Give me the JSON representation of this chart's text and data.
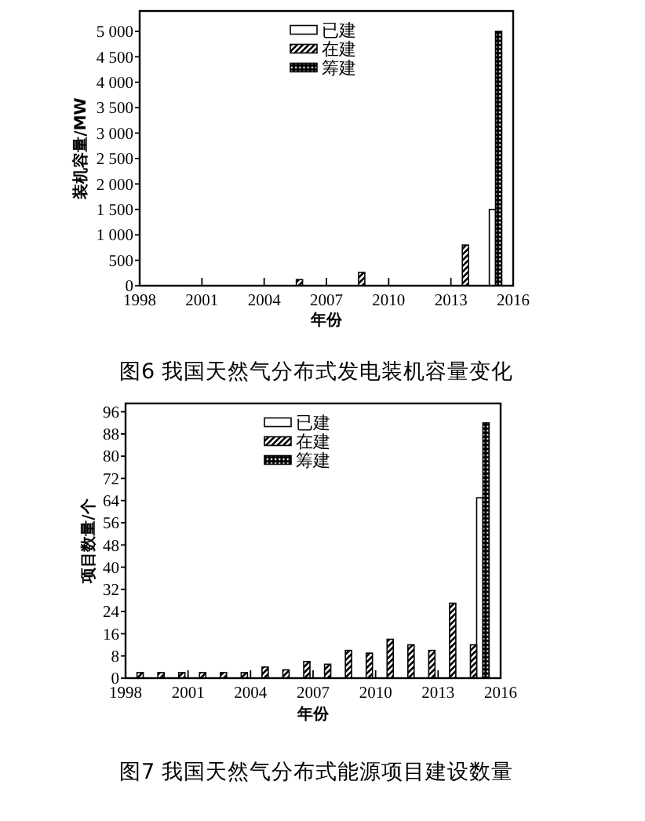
{
  "chart_data": [
    {
      "type": "bar",
      "title": "图6 我国天然气分布式发电装机容量变化",
      "xlabel": "年份",
      "ylabel": "装机容量/MW",
      "xlim": [
        1998,
        2016
      ],
      "xticks": [
        1998,
        2001,
        2004,
        2007,
        2010,
        2013,
        2016
      ],
      "ylim": [
        0,
        5400
      ],
      "yticks": [
        0,
        500,
        {
          "value": 1000,
          "label": "1 000"
        },
        {
          "value": 1500,
          "label": "1 500"
        },
        {
          "value": 2000,
          "label": "2 000"
        },
        {
          "value": 2500,
          "label": "2 500"
        },
        {
          "value": 3000,
          "label": "3 000"
        },
        {
          "value": 3500,
          "label": "3 500"
        },
        {
          "value": 4000,
          "label": "4 000"
        },
        {
          "value": 4500,
          "label": "4 500"
        },
        {
          "value": 5000,
          "label": "5 000"
        }
      ],
      "legend": "top",
      "series": [
        {
          "name": "已建",
          "color": "#ffffff",
          "x": [
            2015.0
          ],
          "values": [
            1500
          ]
        },
        {
          "name": "在建",
          "color": "#000000",
          "x": [
            2005.7,
            2008.7,
            2013.7
          ],
          "values": [
            120,
            260,
            800
          ]
        },
        {
          "name": "筹建",
          "color": "#000000",
          "x": [
            2015.3
          ],
          "values": [
            5000
          ]
        }
      ]
    },
    {
      "type": "bar",
      "title": "图7 我国天然气分布式能源项目建设数量",
      "xlabel": "年份",
      "ylabel": "项目数量/个",
      "xlim": [
        1998,
        2016
      ],
      "xticks": [
        1998,
        2001,
        2004,
        2007,
        2010,
        2013,
        2016
      ],
      "ylim": [
        0,
        99
      ],
      "yticks": [
        0,
        8,
        16,
        24,
        32,
        40,
        48,
        56,
        64,
        72,
        80,
        88,
        96
      ],
      "legend": "top",
      "series": [
        {
          "name": "已建",
          "color": "#ffffff",
          "x": [
            2015.0
          ],
          "values": [
            65
          ]
        },
        {
          "name": "在建",
          "color": "#000000",
          "x": [
            1998.7,
            1999.7,
            2000.7,
            2001.7,
            2002.7,
            2003.7,
            2004.7,
            2005.7,
            2006.7,
            2007.7,
            2008.7,
            2009.7,
            2010.7,
            2011.7,
            2012.7,
            2013.7,
            2014.7
          ],
          "values": [
            2,
            2,
            2,
            2,
            2,
            2,
            4,
            3,
            6,
            5,
            10,
            9,
            14,
            12,
            10,
            27,
            12
          ]
        },
        {
          "name": "筹建",
          "color": "#000000",
          "x": [
            2015.3
          ],
          "values": [
            92
          ]
        }
      ]
    }
  ]
}
